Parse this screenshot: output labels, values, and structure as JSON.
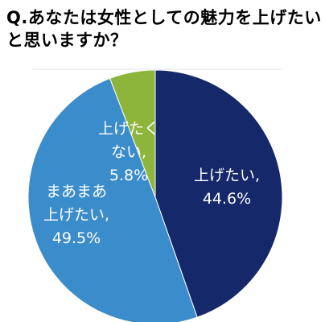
{
  "chart_data": {
    "type": "pie",
    "title": "Q.あなたは女性としての魅力を上げたいと思いますか？",
    "categories": [
      "上げたい,",
      "まあまあ上げたい,",
      "上げたくない,"
    ],
    "values": [
      44.6,
      49.5,
      5.8
    ],
    "value_labels": [
      "44.6%",
      "49.5%",
      "5.8%"
    ],
    "colors": [
      "#14286a",
      "#3b8cca",
      "#8db53c"
    ]
  }
}
